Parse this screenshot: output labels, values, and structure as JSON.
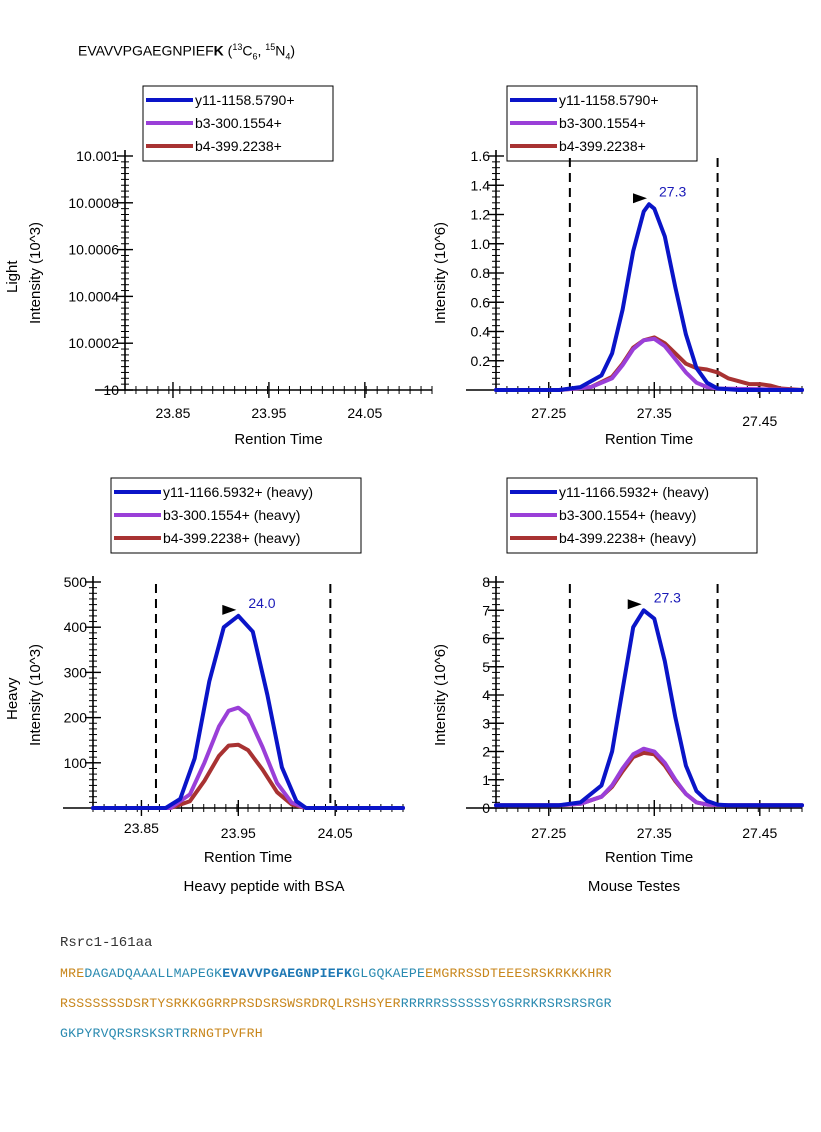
{
  "peptide": {
    "sequence": "EVAVVPGAEGNPIEF",
    "heavy_residue": "K",
    "label_open": " (",
    "c_mass": "13",
    "c_sym": "C",
    "c_count": "6",
    "comma": ", ",
    "n_mass": "15",
    "n_sym": "N",
    "n_count": "4",
    "label_close": ")"
  },
  "row_labels": {
    "light": "Light",
    "heavy": "Heavy"
  },
  "captions": {
    "bsa": "Heavy peptide with BSA",
    "testes": "Mouse Testes"
  },
  "colors": {
    "y11": "#0a14c8",
    "b3": "#9a3fd8",
    "b4": "#a83232"
  },
  "chart_data": [
    {
      "id": "light-bsa",
      "type": "line",
      "title": "",
      "xlabel": "Rention Time",
      "ylabel": "Intensity (10^3)",
      "xlim": [
        23.8,
        24.12
      ],
      "ylim": [
        10,
        10.001
      ],
      "xticks": [
        23.85,
        23.95,
        24.05
      ],
      "xtick_labels": [
        "23.85",
        "23.95",
        "24.05"
      ],
      "yticks": [
        10,
        10.0002,
        10.0004,
        10.0006,
        10.0008,
        10.001
      ],
      "ytick_labels": [
        "10",
        "10.0002",
        "10.0004",
        "10.0006",
        "10.0008",
        "10.001"
      ],
      "legend": [
        "y11-1158.5790+",
        "b3-300.1554+",
        "b4-399.2238+"
      ],
      "series": [],
      "peak_label": "",
      "integration_bounds": []
    },
    {
      "id": "light-testes",
      "type": "line",
      "title": "",
      "xlabel": "Rention Time",
      "ylabel": "Intensity (10^6)",
      "xlim": [
        27.2,
        27.49
      ],
      "ylim": [
        0,
        1.6
      ],
      "xticks": [
        27.25,
        27.35,
        27.45
      ],
      "xtick_labels": [
        "27.25",
        "27.35",
        "27.45"
      ],
      "yticks": [
        0.2,
        0.4,
        0.6,
        0.8,
        1.0,
        1.2,
        1.4,
        1.6
      ],
      "ytick_labels": [
        "0.2",
        "0.4",
        "0.6",
        "0.8",
        "1.0",
        "1.2",
        "1.4",
        "1.6"
      ],
      "legend": [
        "y11-1158.5790+",
        "b3-300.1554+",
        "b4-399.2238+"
      ],
      "series": [
        {
          "name": "y11-1158.5790+",
          "color": "y11",
          "x": [
            27.2,
            27.26,
            27.28,
            27.3,
            27.31,
            27.32,
            27.33,
            27.34,
            27.345,
            27.35,
            27.36,
            27.37,
            27.38,
            27.39,
            27.4,
            27.41,
            27.43,
            27.49
          ],
          "y": [
            0,
            0,
            0.02,
            0.1,
            0.25,
            0.55,
            0.95,
            1.22,
            1.27,
            1.24,
            1.05,
            0.7,
            0.38,
            0.15,
            0.05,
            0.01,
            0,
            0
          ]
        },
        {
          "name": "b3-300.1554+",
          "color": "b3",
          "x": [
            27.2,
            27.26,
            27.29,
            27.31,
            27.32,
            27.33,
            27.34,
            27.35,
            27.36,
            27.37,
            27.38,
            27.39,
            27.4,
            27.41,
            27.49
          ],
          "y": [
            0,
            0,
            0.02,
            0.08,
            0.17,
            0.28,
            0.34,
            0.35,
            0.3,
            0.21,
            0.12,
            0.05,
            0.02,
            0.01,
            0
          ]
        },
        {
          "name": "b4-399.2238+",
          "color": "b4",
          "x": [
            27.2,
            27.26,
            27.29,
            27.31,
            27.32,
            27.33,
            27.34,
            27.35,
            27.36,
            27.37,
            27.38,
            27.39,
            27.4,
            27.41,
            27.42,
            27.43,
            27.44,
            27.45,
            27.46,
            27.47,
            27.49
          ],
          "y": [
            0,
            0,
            0.02,
            0.09,
            0.18,
            0.29,
            0.34,
            0.36,
            0.32,
            0.25,
            0.18,
            0.15,
            0.14,
            0.12,
            0.08,
            0.06,
            0.04,
            0.04,
            0.03,
            0.01,
            0
          ]
        }
      ],
      "peak_label": "27.3",
      "peak": {
        "x": 27.345,
        "y": 1.27
      },
      "integration_bounds": [
        27.27,
        27.41
      ]
    },
    {
      "id": "heavy-bsa",
      "type": "line",
      "title": "",
      "xlabel": "Rention Time",
      "ylabel": "Intensity (10^3)",
      "xlim": [
        23.8,
        24.12
      ],
      "ylim": [
        0,
        500
      ],
      "xticks": [
        23.85,
        23.95,
        24.05
      ],
      "xtick_labels": [
        "23.85",
        "23.95",
        "24.05"
      ],
      "yticks": [
        100,
        200,
        300,
        400,
        500
      ],
      "ytick_labels": [
        "100",
        "200",
        "300",
        "400",
        "500"
      ],
      "legend": [
        "y11-1166.5932+ (heavy)",
        "b3-300.1554+ (heavy)",
        "b4-399.2238+ (heavy)"
      ],
      "series": [
        {
          "name": "y11-1166.5932+ (heavy)",
          "color": "y11",
          "x": [
            23.8,
            23.875,
            23.89,
            23.905,
            23.92,
            23.935,
            23.95,
            23.965,
            23.98,
            23.995,
            24.01,
            24.02,
            24.12
          ],
          "y": [
            0,
            0,
            20,
            110,
            280,
            400,
            425,
            390,
            250,
            90,
            15,
            0,
            0
          ]
        },
        {
          "name": "b3-300.1554+ (heavy)",
          "color": "b3",
          "x": [
            23.8,
            23.88,
            23.9,
            23.915,
            23.93,
            23.94,
            23.95,
            23.96,
            23.975,
            23.99,
            24.005,
            24.02,
            24.12
          ],
          "y": [
            0,
            0,
            30,
            100,
            180,
            215,
            222,
            205,
            135,
            55,
            12,
            0,
            0
          ]
        },
        {
          "name": "b4-399.2238+ (heavy)",
          "color": "b4",
          "x": [
            23.8,
            23.88,
            23.9,
            23.915,
            23.93,
            23.94,
            23.95,
            23.96,
            23.975,
            23.99,
            24.005,
            24.02,
            24.12
          ],
          "y": [
            0,
            0,
            15,
            60,
            115,
            138,
            140,
            128,
            85,
            35,
            8,
            0,
            0
          ]
        }
      ],
      "peak_label": "24.0",
      "peak": {
        "x": 23.95,
        "y": 425
      },
      "integration_bounds": [
        23.865,
        24.045
      ]
    },
    {
      "id": "heavy-testes",
      "type": "line",
      "title": "",
      "xlabel": "Rention Time",
      "ylabel": "Intensity (10^6)",
      "xlim": [
        27.2,
        27.49
      ],
      "ylim": [
        0,
        8
      ],
      "xticks": [
        27.25,
        27.35,
        27.45
      ],
      "xtick_labels": [
        "27.25",
        "27.35",
        "27.45"
      ],
      "yticks": [
        0,
        1,
        2,
        3,
        4,
        5,
        6,
        7,
        8
      ],
      "ytick_labels": [
        "0",
        "1",
        "2",
        "3",
        "4",
        "5",
        "6",
        "7",
        "8"
      ],
      "legend": [
        "y11-1166.5932+ (heavy)",
        "b3-300.1554+ (heavy)",
        "b4-399.2238+ (heavy)"
      ],
      "series": [
        {
          "name": "y11-1166.5932+ (heavy)",
          "color": "y11",
          "x": [
            27.2,
            27.26,
            27.28,
            27.3,
            27.31,
            27.32,
            27.33,
            27.34,
            27.35,
            27.36,
            27.37,
            27.38,
            27.39,
            27.4,
            27.41,
            27.42,
            27.49
          ],
          "y": [
            0.1,
            0.1,
            0.2,
            0.8,
            2.0,
            4.2,
            6.4,
            7.0,
            6.7,
            5.2,
            3.2,
            1.5,
            0.6,
            0.25,
            0.12,
            0.1,
            0.1
          ]
        },
        {
          "name": "b3-300.1554+ (heavy)",
          "color": "b3",
          "x": [
            27.2,
            27.26,
            27.28,
            27.3,
            27.31,
            27.32,
            27.33,
            27.34,
            27.35,
            27.36,
            27.37,
            27.38,
            27.39,
            27.4,
            27.42,
            27.49
          ],
          "y": [
            0.1,
            0.1,
            0.15,
            0.4,
            0.8,
            1.4,
            1.9,
            2.1,
            2.0,
            1.6,
            1.0,
            0.5,
            0.2,
            0.12,
            0.1,
            0.1
          ]
        },
        {
          "name": "b4-399.2238+ (heavy)",
          "color": "b4",
          "x": [
            27.2,
            27.26,
            27.28,
            27.3,
            27.31,
            27.32,
            27.33,
            27.34,
            27.35,
            27.36,
            27.37,
            27.38,
            27.39,
            27.4,
            27.42,
            27.49
          ],
          "y": [
            0.1,
            0.1,
            0.15,
            0.4,
            0.75,
            1.3,
            1.8,
            1.95,
            1.9,
            1.5,
            0.95,
            0.5,
            0.2,
            0.12,
            0.1,
            0.1
          ]
        }
      ],
      "peak_label": "27.3",
      "peak": {
        "x": 27.34,
        "y": 7.0
      },
      "integration_bounds": [
        27.27,
        27.41
      ]
    }
  ],
  "sequence_block": {
    "title": "Rsrc1-161aa",
    "line1": [
      {
        "text": "MRE",
        "style": "orange"
      },
      {
        "text": "DAGADQAAALLMAPEGK",
        "style": "blue"
      },
      {
        "text": "EVAVVPGAEGNPIEFK",
        "style": "bold"
      },
      {
        "text": "GLGQKAEPE",
        "style": "blue"
      },
      {
        "text": "EMGRRSSDTEEESRSKRKKKHRR",
        "style": "orange"
      }
    ],
    "line2": [
      {
        "text": "RSSSSSSSDSRTYSRKKGGRRPRSDSRSWSRDRQLRSHSYER",
        "style": "orange"
      },
      {
        "text": "RRRRRSSSSSSYGSRRKRSRSRSRGR",
        "style": "blue"
      }
    ],
    "line3": [
      {
        "text": "GKPYRVQRSRSKSRTR",
        "style": "blue"
      },
      {
        "text": "RNGTPVFRH",
        "style": "orange"
      }
    ]
  }
}
